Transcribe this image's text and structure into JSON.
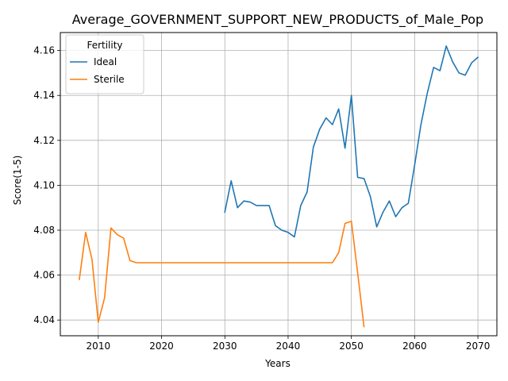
{
  "chart_data": {
    "type": "line",
    "title": "Average_GOVERNMENT_SUPPORT_NEW_PRODUCTS_of_Male_Pop",
    "xlabel": "Years",
    "ylabel": "Score(1-5)",
    "xlim": [
      2004,
      2073
    ],
    "ylim": [
      4.033,
      4.168
    ],
    "xticks": [
      2010,
      2020,
      2030,
      2040,
      2050,
      2060,
      2070
    ],
    "yticks": [
      4.04,
      4.06,
      4.08,
      4.1,
      4.12,
      4.14,
      4.16
    ],
    "ytick_labels": [
      "4.04",
      "4.06",
      "4.08",
      "4.10",
      "4.12",
      "4.14",
      "4.16"
    ],
    "grid": true,
    "legend": {
      "title": "Fertility",
      "placement": "top-left"
    },
    "series": [
      {
        "name": "Ideal",
        "color": "#1f77b4",
        "x": [
          2030,
          2031,
          2032,
          2033,
          2034,
          2035,
          2036,
          2037,
          2038,
          2039,
          2040,
          2041,
          2042,
          2043,
          2044,
          2045,
          2046,
          2047,
          2048,
          2049,
          2050,
          2051,
          2052,
          2053,
          2054,
          2055,
          2056,
          2057,
          2058,
          2059,
          2060,
          2061,
          2062,
          2063,
          2064,
          2065,
          2066,
          2067,
          2068,
          2069,
          2070
        ],
        "y": [
          4.088,
          4.102,
          4.09,
          4.093,
          4.0925,
          4.091,
          4.091,
          4.091,
          4.082,
          4.08,
          4.079,
          4.077,
          4.091,
          4.097,
          4.117,
          4.125,
          4.13,
          4.127,
          4.134,
          4.1165,
          4.14,
          4.1035,
          4.103,
          4.095,
          4.0815,
          4.088,
          4.093,
          4.086,
          4.09,
          4.092,
          4.109,
          4.127,
          4.141,
          4.1525,
          4.151,
          4.162,
          4.155,
          4.15,
          4.149,
          4.1545,
          4.157
        ]
      },
      {
        "name": "Sterile",
        "color": "#ff7f0e",
        "x": [
          2007,
          2008,
          2009,
          2010,
          2011,
          2012,
          2013,
          2014,
          2015,
          2016,
          2017,
          2018,
          2019,
          2020,
          2021,
          2022,
          2023,
          2024,
          2025,
          2026,
          2027,
          2028,
          2029,
          2030,
          2031,
          2032,
          2033,
          2034,
          2035,
          2036,
          2037,
          2038,
          2039,
          2040,
          2041,
          2042,
          2043,
          2044,
          2045,
          2046,
          2047,
          2048,
          2049,
          2050,
          2051,
          2052
        ],
        "y": [
          4.058,
          4.079,
          4.067,
          4.039,
          4.05,
          4.081,
          4.078,
          4.0765,
          4.0665,
          4.0655,
          4.0655,
          4.0655,
          4.0655,
          4.0655,
          4.0655,
          4.0655,
          4.0655,
          4.0655,
          4.0655,
          4.0655,
          4.0655,
          4.0655,
          4.0655,
          4.0655,
          4.0655,
          4.0655,
          4.0655,
          4.0655,
          4.0655,
          4.0655,
          4.0655,
          4.0655,
          4.0655,
          4.0655,
          4.0655,
          4.0655,
          4.0655,
          4.0655,
          4.0655,
          4.0655,
          4.0655,
          4.07,
          4.083,
          4.084,
          4.061,
          4.037
        ]
      }
    ]
  }
}
